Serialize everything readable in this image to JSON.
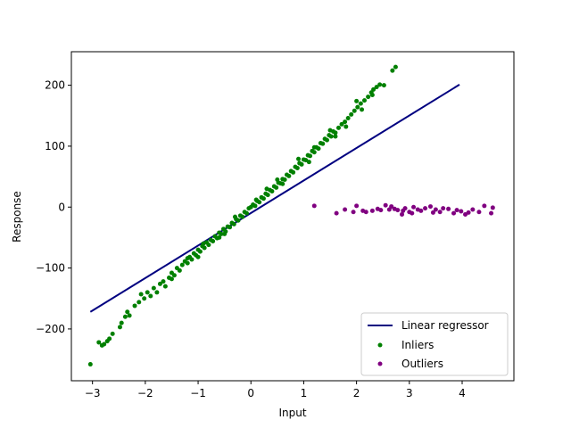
{
  "chart_data": {
    "type": "scatter",
    "xlabel": "Input",
    "ylabel": "Response",
    "xlim": [
      -3.4,
      4.98
    ],
    "ylim": [
      -285,
      255
    ],
    "xticks": [
      -3,
      -2,
      -1,
      0,
      1,
      2,
      3,
      4
    ],
    "yticks": [
      -200,
      -100,
      0,
      100,
      200
    ],
    "xtick_labels": [
      "−3",
      "−2",
      "−1",
      "0",
      "1",
      "2",
      "3",
      "4"
    ],
    "ytick_labels": [
      "−200",
      "−100",
      "0",
      "100",
      "200"
    ],
    "legend_position": "lower-right",
    "grid": false,
    "line": {
      "name": "Linear regressor",
      "color": "#000080",
      "x": [
        -3.04,
        3.95
      ],
      "y": [
        -172,
        201
      ]
    },
    "inliers": {
      "name": "Inliers",
      "color": "#008000",
      "points": [
        [
          -3.04,
          -258
        ],
        [
          -2.88,
          -222
        ],
        [
          -2.82,
          -227
        ],
        [
          -2.78,
          -225
        ],
        [
          -2.72,
          -220
        ],
        [
          -2.68,
          -216
        ],
        [
          -2.62,
          -208
        ],
        [
          -2.48,
          -197
        ],
        [
          -2.45,
          -190
        ],
        [
          -2.38,
          -180
        ],
        [
          -2.34,
          -172
        ],
        [
          -2.3,
          -178
        ],
        [
          -2.2,
          -162
        ],
        [
          -2.12,
          -156
        ],
        [
          -2.08,
          -143
        ],
        [
          -2.02,
          -150
        ],
        [
          -1.96,
          -140
        ],
        [
          -1.9,
          -146
        ],
        [
          -1.84,
          -133
        ],
        [
          -1.78,
          -140
        ],
        [
          -1.72,
          -126
        ],
        [
          -1.66,
          -122
        ],
        [
          -1.62,
          -130
        ],
        [
          -1.55,
          -116
        ],
        [
          -1.5,
          -108
        ],
        [
          -1.45,
          -112
        ],
        [
          -1.4,
          -100
        ],
        [
          -1.35,
          -104
        ],
        [
          -1.3,
          -95
        ],
        [
          -1.25,
          -89
        ],
        [
          -1.2,
          -92
        ],
        [
          -1.16,
          -82
        ],
        [
          -1.12,
          -86
        ],
        [
          -1.08,
          -76
        ],
        [
          -1.04,
          -79
        ],
        [
          -1.0,
          -70
        ],
        [
          -0.96,
          -73
        ],
        [
          -0.92,
          -64
        ],
        [
          -0.88,
          -67
        ],
        [
          -0.84,
          -58
        ],
        [
          -0.8,
          -62
        ],
        [
          -0.76,
          -54
        ],
        [
          -0.72,
          -56
        ],
        [
          -0.68,
          -48
        ],
        [
          -0.64,
          -51
        ],
        [
          -0.6,
          -42
        ],
        [
          -0.56,
          -44
        ],
        [
          -0.52,
          -36
        ],
        [
          -0.48,
          -40
        ],
        [
          -0.44,
          -32
        ],
        [
          -0.4,
          -33
        ],
        [
          -0.36,
          -26
        ],
        [
          -0.32,
          -28
        ],
        [
          -0.28,
          -20
        ],
        [
          -0.24,
          -22
        ],
        [
          -0.2,
          -14
        ],
        [
          -0.16,
          -16
        ],
        [
          -0.12,
          -8
        ],
        [
          -0.08,
          -10
        ],
        [
          -0.04,
          -2
        ],
        [
          0.0,
          0
        ],
        [
          0.04,
          4
        ],
        [
          0.08,
          2
        ],
        [
          0.12,
          10
        ],
        [
          0.16,
          8
        ],
        [
          0.2,
          16
        ],
        [
          0.24,
          14
        ],
        [
          0.28,
          22
        ],
        [
          0.32,
          20
        ],
        [
          0.36,
          28
        ],
        [
          0.4,
          26
        ],
        [
          0.44,
          34
        ],
        [
          0.48,
          32
        ],
        [
          0.52,
          40
        ],
        [
          0.56,
          39
        ],
        [
          0.6,
          46
        ],
        [
          0.64,
          45
        ],
        [
          0.68,
          53
        ],
        [
          0.72,
          51
        ],
        [
          0.76,
          59
        ],
        [
          0.8,
          57
        ],
        [
          0.84,
          66
        ],
        [
          0.88,
          64
        ],
        [
          0.92,
          72
        ],
        [
          0.96,
          70
        ],
        [
          1.0,
          78
        ],
        [
          1.04,
          77
        ],
        [
          1.08,
          85
        ],
        [
          1.12,
          84
        ],
        [
          1.16,
          92
        ],
        [
          1.2,
          90
        ],
        [
          1.24,
          98
        ],
        [
          1.28,
          96
        ],
        [
          1.32,
          105
        ],
        [
          1.36,
          104
        ],
        [
          1.4,
          112
        ],
        [
          1.44,
          110
        ],
        [
          1.48,
          118
        ],
        [
          1.52,
          116
        ],
        [
          1.56,
          124
        ],
        [
          1.6,
          122
        ],
        [
          1.66,
          130
        ],
        [
          1.72,
          136
        ],
        [
          1.78,
          140
        ],
        [
          1.84,
          146
        ],
        [
          1.9,
          152
        ],
        [
          1.96,
          158
        ],
        [
          2.02,
          164
        ],
        [
          2.08,
          170
        ],
        [
          2.15,
          175
        ],
        [
          2.22,
          181
        ],
        [
          2.28,
          188
        ],
        [
          2.32,
          193
        ],
        [
          2.38,
          197
        ],
        [
          2.44,
          201
        ],
        [
          2.52,
          200
        ],
        [
          2.68,
          224
        ],
        [
          2.74,
          230
        ],
        [
          -1.5,
          -118
        ],
        [
          -1.2,
          -84
        ],
        [
          -0.9,
          -60
        ],
        [
          -0.6,
          -50
        ],
        [
          -0.3,
          -16
        ],
        [
          0.3,
          30
        ],
        [
          0.6,
          38
        ],
        [
          0.9,
          79
        ],
        [
          1.2,
          98
        ],
        [
          1.5,
          126
        ],
        [
          1.8,
          132
        ],
        [
          2.1,
          160
        ],
        [
          2.3,
          184
        ],
        [
          -1.0,
          -82
        ],
        [
          -0.5,
          -44
        ],
        [
          0.1,
          12
        ],
        [
          0.5,
          45
        ],
        [
          1.1,
          74
        ],
        [
          1.6,
          116
        ],
        [
          2.0,
          174
        ]
      ]
    },
    "outliers": {
      "name": "Outliers",
      "color": "#800080",
      "points": [
        [
          1.2,
          2
        ],
        [
          1.62,
          -10
        ],
        [
          1.78,
          -4
        ],
        [
          1.94,
          -8
        ],
        [
          2.0,
          2
        ],
        [
          2.12,
          -6
        ],
        [
          2.18,
          -8
        ],
        [
          2.3,
          -6
        ],
        [
          2.4,
          -3
        ],
        [
          2.46,
          -5
        ],
        [
          2.55,
          3
        ],
        [
          2.62,
          -4
        ],
        [
          2.66,
          1
        ],
        [
          2.72,
          -3
        ],
        [
          2.78,
          -5
        ],
        [
          2.86,
          -12
        ],
        [
          2.92,
          -2
        ],
        [
          3.0,
          -8
        ],
        [
          3.08,
          0
        ],
        [
          3.16,
          -4
        ],
        [
          3.22,
          -6
        ],
        [
          3.3,
          -2
        ],
        [
          3.4,
          1
        ],
        [
          3.5,
          -4
        ],
        [
          3.58,
          -8
        ],
        [
          3.64,
          -2
        ],
        [
          3.74,
          -3
        ],
        [
          3.84,
          -10
        ],
        [
          3.9,
          -5
        ],
        [
          4.06,
          -12
        ],
        [
          4.2,
          -4
        ],
        [
          4.32,
          -8
        ],
        [
          4.42,
          2
        ],
        [
          4.55,
          -10
        ],
        [
          4.58,
          -1
        ],
        [
          2.88,
          -6
        ],
        [
          3.05,
          -10
        ],
        [
          3.45,
          -9
        ],
        [
          3.98,
          -7
        ],
        [
          4.12,
          -9
        ]
      ]
    }
  }
}
